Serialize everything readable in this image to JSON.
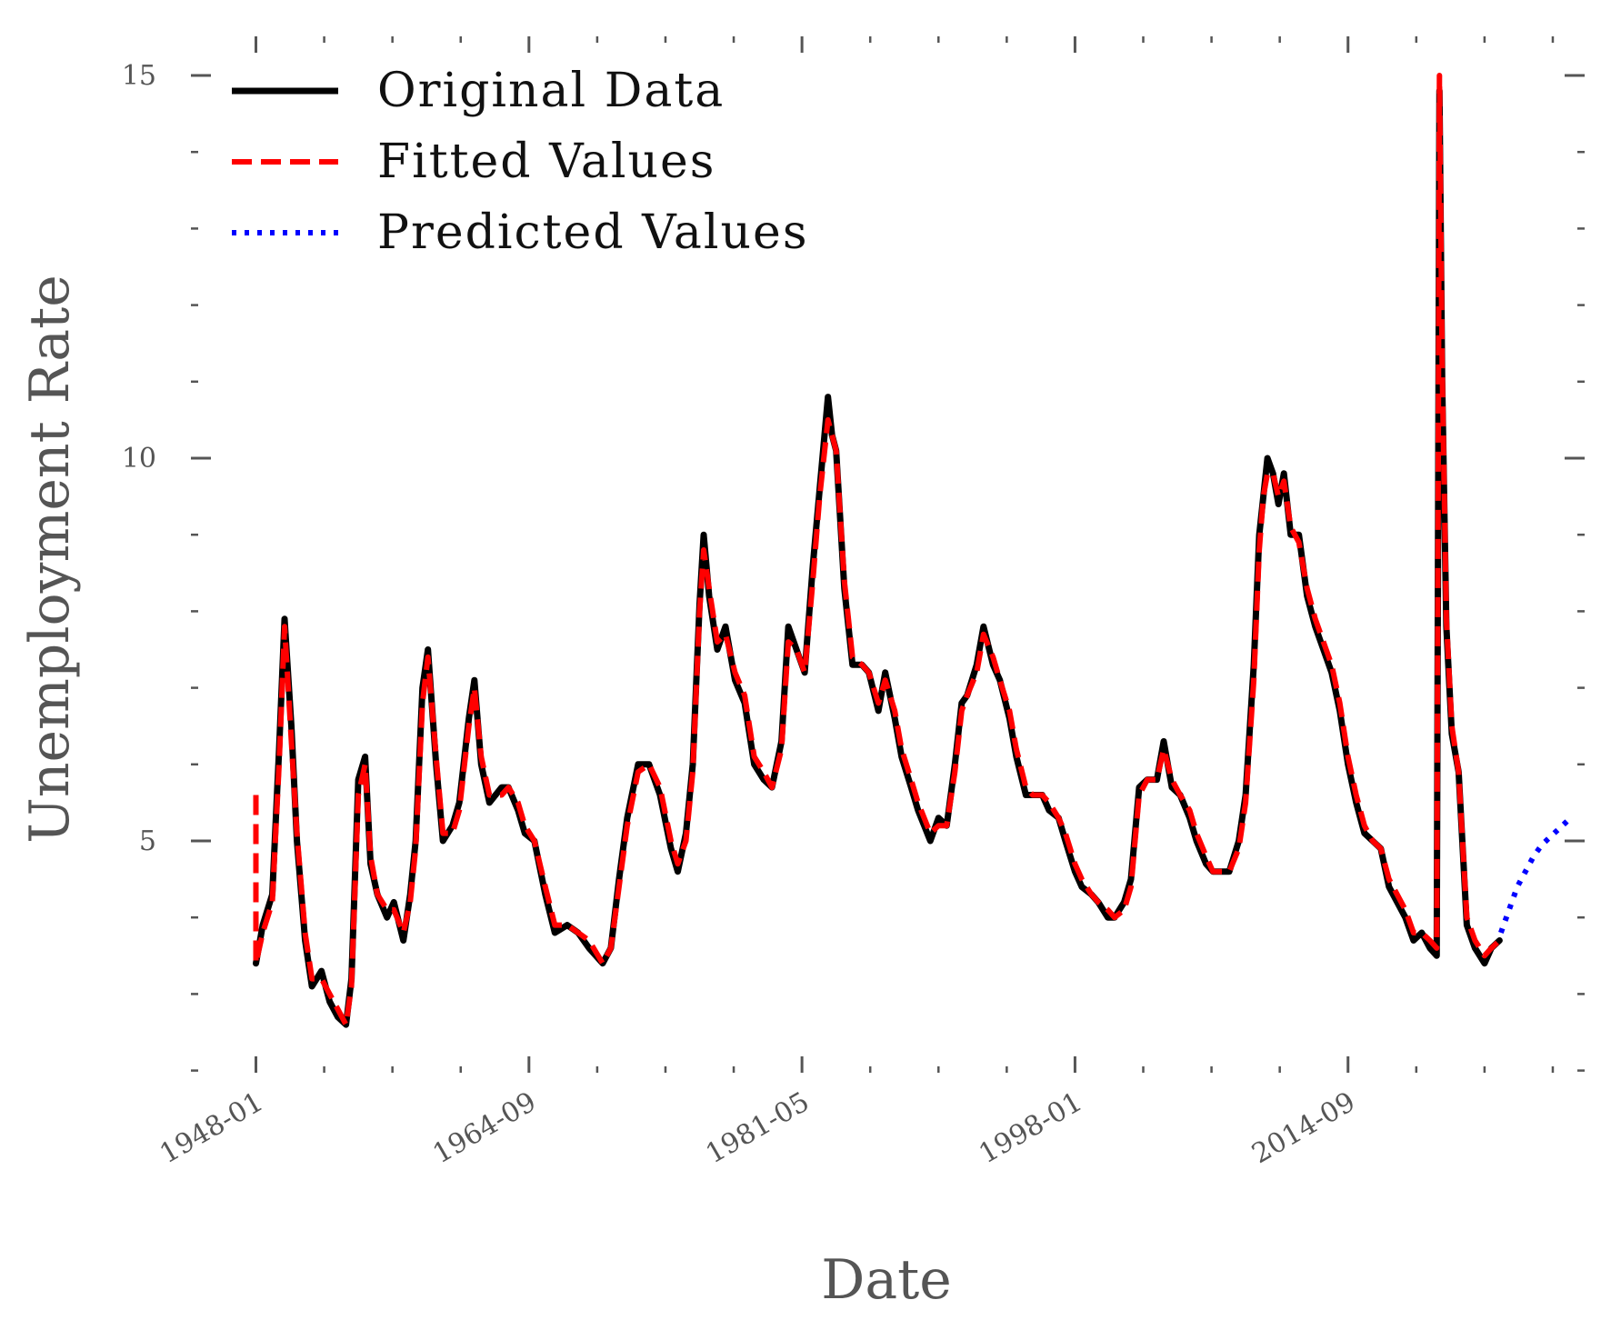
{
  "chart_data": {
    "type": "line",
    "title": "",
    "xlabel": "Date",
    "ylabel": "Unemployment Rate",
    "x_tick_labels": [
      "1948-01",
      "1964-09",
      "1981-05",
      "1998-01",
      "2014-09"
    ],
    "x_range": [
      "1947-10",
      "2028-09"
    ],
    "y_tick_labels": [
      "5",
      "10",
      "15"
    ],
    "ylim": [
      2.0,
      15.4
    ],
    "legend": {
      "position": "top-left",
      "entries": [
        "Original Data",
        "Fitted Values",
        "Predicted Values"
      ]
    },
    "series": [
      {
        "name": "Original Data",
        "color": "#000000",
        "style": "solid",
        "x": [
          "1948-01",
          "1948-06",
          "1949-01",
          "1949-06",
          "1949-10",
          "1950-03",
          "1950-07",
          "1951-01",
          "1951-06",
          "1952-01",
          "1952-07",
          "1953-01",
          "1953-07",
          "1953-11",
          "1954-04",
          "1954-09",
          "1955-01",
          "1955-06",
          "1956-01",
          "1956-06",
          "1957-01",
          "1957-06",
          "1957-10",
          "1958-03",
          "1958-07",
          "1959-01",
          "1959-06",
          "1960-01",
          "1960-06",
          "1961-01",
          "1961-05",
          "1961-10",
          "1962-04",
          "1963-01",
          "1963-06",
          "1964-01",
          "1964-06",
          "1965-01",
          "1965-09",
          "1966-04",
          "1967-01",
          "1967-09",
          "1968-05",
          "1969-03",
          "1969-09",
          "1970-03",
          "1970-09",
          "1971-05",
          "1972-01",
          "1972-09",
          "1973-05",
          "1973-10",
          "1974-04",
          "1974-09",
          "1975-02",
          "1975-05",
          "1975-09",
          "1976-03",
          "1976-09",
          "1977-04",
          "1977-11",
          "1978-06",
          "1979-01",
          "1979-07",
          "1980-02",
          "1980-07",
          "1981-01",
          "1981-07",
          "1982-01",
          "1982-06",
          "1982-12",
          "1983-03",
          "1983-06",
          "1983-12",
          "1984-06",
          "1985-01",
          "1985-06",
          "1986-01",
          "1986-06",
          "1987-01",
          "1987-06",
          "1988-01",
          "1988-06",
          "1989-03",
          "1989-09",
          "1990-03",
          "1990-09",
          "1991-02",
          "1991-06",
          "1992-01",
          "1992-06",
          "1993-01",
          "1993-06",
          "1994-01",
          "1994-06",
          "1995-01",
          "1995-06",
          "1996-01",
          "1996-06",
          "1997-01",
          "1997-06",
          "1998-01",
          "1998-06",
          "1999-01",
          "1999-06",
          "2000-01",
          "2000-06",
          "2001-01",
          "2001-06",
          "2001-12",
          "2002-06",
          "2003-01",
          "2003-06",
          "2003-12",
          "2004-06",
          "2005-01",
          "2005-06",
          "2006-01",
          "2006-06",
          "2007-01",
          "2007-06",
          "2008-01",
          "2008-06",
          "2008-12",
          "2009-04",
          "2009-07",
          "2009-10",
          "2010-02",
          "2010-06",
          "2010-10",
          "2011-03",
          "2011-09",
          "2012-03",
          "2012-09",
          "2013-03",
          "2013-09",
          "2014-03",
          "2014-09",
          "2015-03",
          "2015-09",
          "2016-03",
          "2016-09",
          "2017-03",
          "2017-09",
          "2018-03",
          "2018-09",
          "2019-03",
          "2019-09",
          "2020-02",
          "2020-04",
          "2020-06",
          "2020-09",
          "2021-01",
          "2021-06",
          "2021-12",
          "2022-06",
          "2023-01",
          "2023-06",
          "2023-12"
        ],
        "values": [
          3.4,
          3.9,
          4.3,
          6.2,
          7.9,
          6.5,
          5.0,
          3.7,
          3.1,
          3.3,
          2.9,
          2.7,
          2.6,
          3.2,
          5.8,
          6.1,
          4.7,
          4.3,
          4.0,
          4.2,
          3.7,
          4.3,
          5.0,
          7.0,
          7.5,
          6.0,
          5.0,
          5.2,
          5.5,
          6.6,
          7.1,
          6.0,
          5.5,
          5.7,
          5.7,
          5.4,
          5.1,
          5.0,
          4.3,
          3.8,
          3.9,
          3.8,
          3.6,
          3.4,
          3.6,
          4.5,
          5.3,
          6.0,
          6.0,
          5.6,
          4.9,
          4.6,
          5.1,
          6.0,
          8.1,
          9.0,
          8.2,
          7.5,
          7.8,
          7.1,
          6.8,
          6.0,
          5.8,
          5.7,
          6.3,
          7.8,
          7.5,
          7.2,
          8.6,
          9.6,
          10.8,
          10.3,
          10.1,
          8.3,
          7.3,
          7.3,
          7.2,
          6.7,
          7.2,
          6.6,
          6.1,
          5.7,
          5.4,
          5.0,
          5.3,
          5.2,
          6.0,
          6.8,
          6.9,
          7.3,
          7.8,
          7.3,
          7.1,
          6.6,
          6.1,
          5.6,
          5.6,
          5.6,
          5.4,
          5.3,
          5.0,
          4.6,
          4.4,
          4.3,
          4.2,
          4.0,
          4.0,
          4.2,
          4.5,
          5.7,
          5.8,
          5.8,
          6.3,
          5.7,
          5.6,
          5.3,
          5.0,
          4.7,
          4.6,
          4.6,
          4.6,
          5.0,
          5.6,
          7.3,
          9.0,
          9.5,
          10.0,
          9.8,
          9.4,
          9.8,
          9.0,
          9.0,
          8.2,
          7.8,
          7.5,
          7.2,
          6.7,
          6.0,
          5.5,
          5.1,
          5.0,
          4.9,
          4.4,
          4.2,
          4.0,
          3.7,
          3.8,
          3.6,
          3.5,
          14.8,
          11.0,
          7.8,
          6.4,
          5.9,
          3.9,
          3.6,
          3.4,
          3.6,
          3.7
        ]
      },
      {
        "name": "Fitted Values",
        "color": "#ff0000",
        "style": "dashed",
        "x": [
          "1948-01",
          "1948-01",
          "1948-06",
          "1949-01",
          "1949-06",
          "1949-10",
          "1950-03",
          "1950-07",
          "1951-01",
          "1951-06",
          "1952-01",
          "1952-07",
          "1953-01",
          "1953-07",
          "1953-11",
          "1954-04",
          "1954-09",
          "1955-01",
          "1955-06",
          "1956-01",
          "1956-06",
          "1957-01",
          "1957-06",
          "1957-10",
          "1958-03",
          "1958-07",
          "1959-01",
          "1959-06",
          "1960-01",
          "1960-06",
          "1961-01",
          "1961-05",
          "1961-10",
          "1962-04",
          "1963-01",
          "1963-06",
          "1964-01",
          "1964-06",
          "1965-01",
          "1965-09",
          "1966-04",
          "1967-01",
          "1967-09",
          "1968-05",
          "1969-03",
          "1969-09",
          "1970-03",
          "1970-09",
          "1971-05",
          "1972-01",
          "1972-09",
          "1973-05",
          "1973-10",
          "1974-04",
          "1974-09",
          "1975-02",
          "1975-05",
          "1975-09",
          "1976-03",
          "1976-09",
          "1977-04",
          "1977-11",
          "1978-06",
          "1979-01",
          "1979-07",
          "1980-02",
          "1980-07",
          "1981-01",
          "1981-07",
          "1982-01",
          "1982-06",
          "1982-12",
          "1983-03",
          "1983-06",
          "1983-12",
          "1984-06",
          "1985-01",
          "1985-06",
          "1986-01",
          "1986-06",
          "1987-01",
          "1987-06",
          "1988-01",
          "1988-06",
          "1989-03",
          "1989-09",
          "1990-03",
          "1990-09",
          "1991-02",
          "1991-06",
          "1992-01",
          "1992-06",
          "1993-01",
          "1993-06",
          "1994-01",
          "1994-06",
          "1995-01",
          "1995-06",
          "1996-01",
          "1996-06",
          "1997-01",
          "1997-06",
          "1998-01",
          "1998-06",
          "1999-01",
          "1999-06",
          "2000-01",
          "2000-06",
          "2001-01",
          "2001-06",
          "2001-12",
          "2002-06",
          "2003-01",
          "2003-06",
          "2003-12",
          "2004-06",
          "2005-01",
          "2005-06",
          "2006-01",
          "2006-06",
          "2007-01",
          "2007-06",
          "2008-01",
          "2008-06",
          "2008-12",
          "2009-04",
          "2009-07",
          "2009-10",
          "2010-02",
          "2010-06",
          "2010-10",
          "2011-03",
          "2011-09",
          "2012-03",
          "2012-09",
          "2013-03",
          "2013-09",
          "2014-03",
          "2014-09",
          "2015-03",
          "2015-09",
          "2016-03",
          "2016-09",
          "2017-03",
          "2017-09",
          "2018-03",
          "2018-09",
          "2019-03",
          "2019-09",
          "2020-02",
          "2020-04",
          "2020-06",
          "2020-09",
          "2021-01",
          "2021-06",
          "2021-12",
          "2022-06",
          "2023-01",
          "2023-06",
          "2023-12"
        ],
        "values": [
          5.6,
          3.4,
          3.8,
          4.2,
          6.0,
          7.8,
          6.3,
          5.1,
          3.8,
          3.2,
          3.2,
          3.0,
          2.8,
          2.6,
          3.1,
          5.6,
          6.0,
          4.8,
          4.3,
          4.1,
          4.1,
          3.8,
          4.2,
          4.9,
          6.8,
          7.4,
          6.1,
          5.1,
          5.1,
          5.4,
          6.5,
          7.0,
          6.1,
          5.6,
          5.6,
          5.7,
          5.5,
          5.2,
          5.0,
          4.4,
          3.9,
          3.9,
          3.8,
          3.7,
          3.4,
          3.6,
          4.4,
          5.2,
          5.9,
          6.0,
          5.7,
          5.0,
          4.7,
          5.0,
          5.9,
          8.0,
          8.8,
          8.3,
          7.6,
          7.7,
          7.2,
          6.9,
          6.1,
          5.9,
          5.7,
          6.2,
          7.6,
          7.5,
          7.2,
          8.4,
          9.5,
          10.5,
          10.3,
          10.1,
          8.4,
          7.4,
          7.3,
          7.2,
          6.8,
          7.1,
          6.7,
          6.2,
          5.8,
          5.5,
          5.1,
          5.2,
          5.2,
          5.9,
          6.7,
          6.9,
          7.2,
          7.7,
          7.4,
          7.1,
          6.7,
          6.2,
          5.7,
          5.6,
          5.6,
          5.5,
          5.3,
          5.1,
          4.7,
          4.5,
          4.3,
          4.2,
          4.1,
          4.0,
          4.1,
          4.4,
          5.6,
          5.8,
          5.8,
          6.2,
          5.8,
          5.6,
          5.4,
          5.1,
          4.8,
          4.6,
          4.6,
          4.6,
          4.9,
          5.5,
          7.1,
          8.8,
          9.5,
          9.8,
          9.8,
          9.5,
          9.7,
          9.1,
          8.9,
          8.3,
          7.9,
          7.6,
          7.3,
          6.8,
          6.1,
          5.6,
          5.2,
          5.0,
          4.9,
          4.5,
          4.3,
          4.1,
          3.8,
          3.8,
          3.7,
          3.6,
          15.0,
          11.2,
          7.9,
          6.5,
          5.9,
          4.0,
          3.7,
          3.5,
          3.6,
          3.7
        ]
      },
      {
        "name": "Predicted Values",
        "color": "#0000ff",
        "style": "dotted",
        "x": [
          "2024-01",
          "2024-07",
          "2025-01",
          "2025-07",
          "2026-01",
          "2026-07",
          "2027-01",
          "2027-07",
          "2028-01",
          "2028-04"
        ],
        "values": [
          3.8,
          4.1,
          4.4,
          4.6,
          4.8,
          4.95,
          5.05,
          5.15,
          5.25,
          5.3
        ]
      }
    ]
  }
}
